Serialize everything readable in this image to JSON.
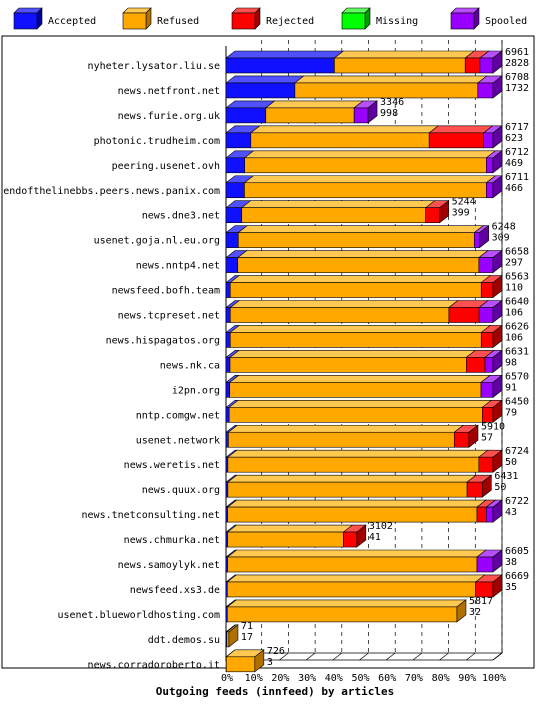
{
  "chart_data": {
    "type": "bar",
    "orientation": "horizontal",
    "stacked": true,
    "title": "",
    "xlabel": "Outgoing feeds (innfeed) by articles",
    "ylabel": "",
    "xlim": [
      0,
      100
    ],
    "x_unit": "%",
    "x_ticks": [
      "0%",
      "10%",
      "20%",
      "30%",
      "40%",
      "50%",
      "60%",
      "70%",
      "80%",
      "90%",
      "100%"
    ],
    "grid": true,
    "legend_position": "top",
    "series": [
      {
        "name": "Accepted",
        "color": "#1010ff",
        "side": "#0000a0",
        "top": "#5050ff"
      },
      {
        "name": "Refused",
        "color": "#ffa800",
        "side": "#b07000",
        "top": "#ffc850"
      },
      {
        "name": "Rejected",
        "color": "#ff0000",
        "side": "#a00000",
        "top": "#ff5050"
      },
      {
        "name": "Missing",
        "color": "#00ff00",
        "side": "#00a000",
        "top": "#60ff60"
      },
      {
        "name": "Spooled",
        "color": "#9900ff",
        "side": "#6000a0",
        "top": "#b850ff"
      }
    ],
    "rows": [
      {
        "host": "nyheter.lysator.liu.se",
        "total": "6961",
        "accepted": "2828",
        "pct": [
          40.6,
          49.0,
          5.5,
          0,
          4.9
        ]
      },
      {
        "host": "news.netfront.net",
        "total": "6708",
        "accepted": "1732",
        "pct": [
          25.8,
          68.5,
          0,
          0,
          5.7
        ]
      },
      {
        "host": "news.furie.org.uk",
        "total": "3346",
        "accepted": "998",
        "pct": [
          14.9,
          33.1,
          0,
          0,
          5.2
        ]
      },
      {
        "host": "photonic.trudheim.com",
        "total": "6717",
        "accepted": "623",
        "pct": [
          9.3,
          66.8,
          20.4,
          0,
          3.5
        ]
      },
      {
        "host": "peering.usenet.ovh",
        "total": "6712",
        "accepted": "469",
        "pct": [
          7.0,
          90.5,
          0,
          0,
          2.5
        ]
      },
      {
        "host": "endofthelinebbs.peers.news.panix.com",
        "total": "6711",
        "accepted": "466",
        "pct": [
          6.9,
          90.6,
          0,
          0,
          2.5
        ]
      },
      {
        "host": "news.dne3.net",
        "total": "5244",
        "accepted": "399",
        "pct": [
          5.9,
          68.9,
          5.2,
          0,
          0
        ]
      },
      {
        "host": "usenet.goja.nl.eu.org",
        "total": "6248",
        "accepted": "309",
        "pct": [
          4.6,
          88.4,
          0,
          0,
          2.0
        ]
      },
      {
        "host": "news.nntp4.net",
        "total": "6658",
        "accepted": "297",
        "pct": [
          4.4,
          90.3,
          0,
          0,
          5.3
        ]
      },
      {
        "host": "newsfeed.bofh.team",
        "total": "6563",
        "accepted": "110",
        "pct": [
          1.6,
          94.0,
          4.4,
          0,
          0
        ]
      },
      {
        "host": "news.tcpreset.net",
        "total": "6640",
        "accepted": "106",
        "pct": [
          1.6,
          81.9,
          11.3,
          0,
          5.2
        ]
      },
      {
        "host": "news.hispagatos.org",
        "total": "6626",
        "accepted": "106",
        "pct": [
          1.6,
          94.0,
          4.4,
          0,
          0
        ]
      },
      {
        "host": "news.nk.ca",
        "total": "6631",
        "accepted": "98",
        "pct": [
          1.5,
          88.5,
          7.0,
          0,
          3.0
        ]
      },
      {
        "host": "i2pn.org",
        "total": "6570",
        "accepted": "91",
        "pct": [
          1.4,
          94.1,
          0,
          0,
          4.5
        ]
      },
      {
        "host": "nntp.comgw.net",
        "total": "6450",
        "accepted": "79",
        "pct": [
          1.2,
          94.8,
          4.0,
          0,
          0
        ]
      },
      {
        "host": "usenet.network",
        "total": "5910",
        "accepted": "57",
        "pct": [
          0.9,
          84.6,
          5.5,
          0,
          0
        ]
      },
      {
        "host": "news.weretis.net",
        "total": "6724",
        "accepted": "50",
        "pct": [
          0.7,
          94.0,
          5.3,
          0,
          0
        ]
      },
      {
        "host": "news.quux.org",
        "total": "6431",
        "accepted": "50",
        "pct": [
          0.7,
          89.6,
          5.7,
          0,
          0
        ]
      },
      {
        "host": "news.tnetconsulting.net",
        "total": "6722",
        "accepted": "43",
        "pct": [
          0.6,
          93.4,
          3.5,
          0,
          2.5
        ]
      },
      {
        "host": "news.chmurka.net",
        "total": "3102",
        "accepted": "41",
        "pct": [
          0.6,
          43.4,
          5.0,
          0,
          0
        ]
      },
      {
        "host": "news.samoylyk.net",
        "total": "6605",
        "accepted": "38",
        "pct": [
          0.6,
          93.4,
          0,
          0,
          6.0
        ]
      },
      {
        "host": "newsfeed.xs3.de",
        "total": "6669",
        "accepted": "35",
        "pct": [
          0.5,
          93.0,
          6.5,
          0,
          0
        ]
      },
      {
        "host": "usenet.blueworldhosting.com",
        "total": "5817",
        "accepted": "32",
        "pct": [
          0.5,
          86.0,
          0,
          0,
          0
        ]
      },
      {
        "host": "ddt.demos.su",
        "total": "71",
        "accepted": "17",
        "pct": [
          0.3,
          0.8,
          0,
          0,
          0
        ]
      },
      {
        "host": "news.corradoroberto.it",
        "total": "726",
        "accepted": "3",
        "pct": [
          0.1,
          10.7,
          0,
          0,
          0
        ]
      }
    ]
  }
}
